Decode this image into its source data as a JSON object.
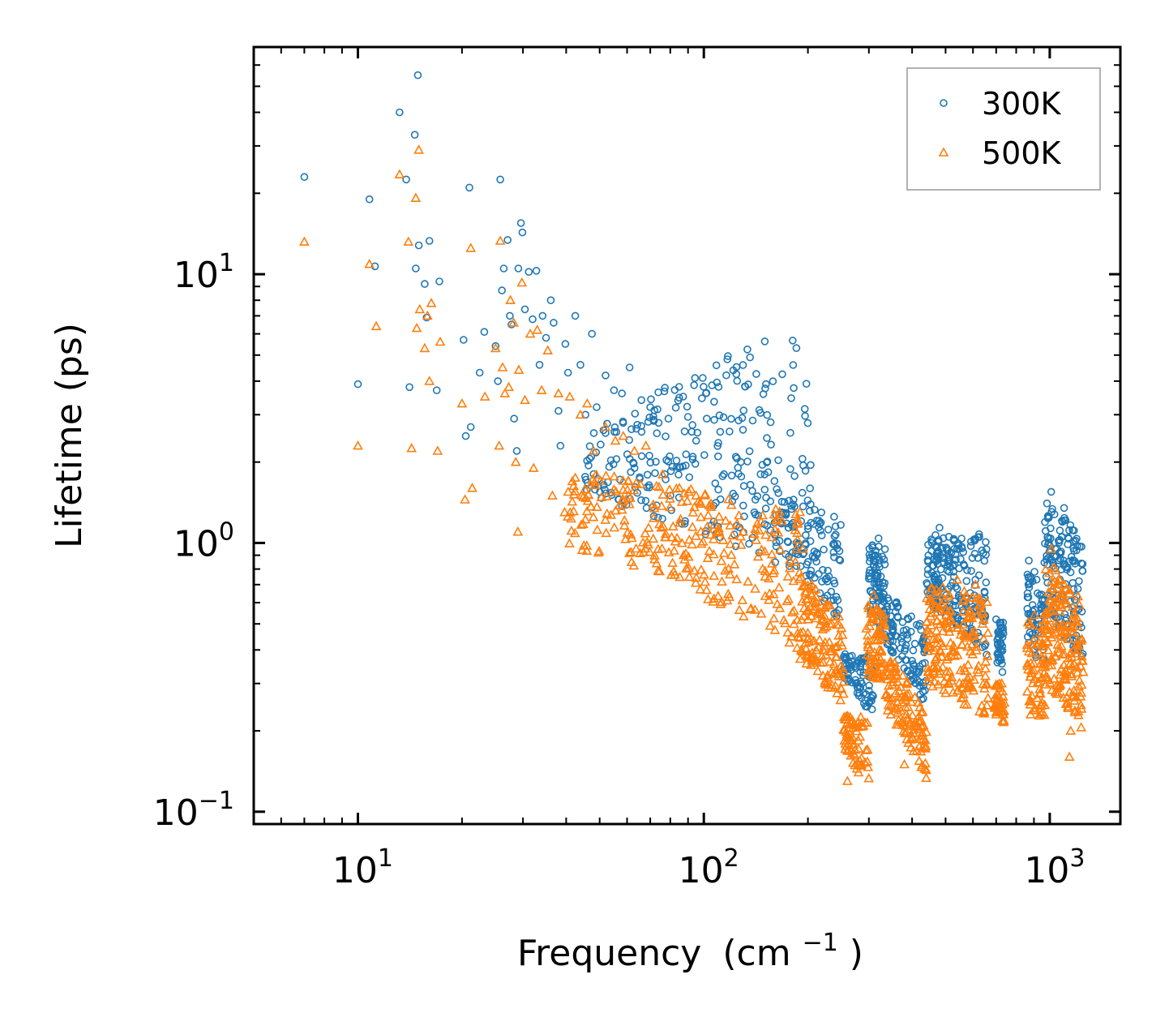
{
  "chart_data": {
    "type": "scatter",
    "title": "",
    "xlabel": "Frequency",
    "xlabel_unit_base": "(cm",
    "xlabel_unit_exp": "−1",
    "xlabel_unit_close": ")",
    "ylabel": "Lifetime (ps)",
    "xscale": "log",
    "yscale": "log",
    "xlim": [
      5,
      1600
    ],
    "ylim": [
      0.09,
      70
    ],
    "xticks": [
      {
        "value": 10,
        "base": "10",
        "exp": "1"
      },
      {
        "value": 100,
        "base": "10",
        "exp": "2"
      },
      {
        "value": 1000,
        "base": "10",
        "exp": "3"
      }
    ],
    "yticks": [
      {
        "value": 0.1,
        "base": "10",
        "exp": "−1"
      },
      {
        "value": 1,
        "base": "10",
        "exp": "0"
      },
      {
        "value": 10,
        "base": "10",
        "exp": "1"
      }
    ],
    "legend_position": "top-right",
    "series": [
      {
        "name": "300K",
        "marker": "circle",
        "color": "#1f77b4",
        "points": [
          [
            7.0,
            23
          ],
          [
            10.0,
            3.9
          ],
          [
            10.8,
            19
          ],
          [
            11.2,
            10.7
          ],
          [
            13.2,
            40
          ],
          [
            13.8,
            22.5
          ],
          [
            14.6,
            33
          ],
          [
            14.9,
            55
          ],
          [
            15.0,
            12.8
          ],
          [
            14.7,
            10.5
          ],
          [
            15.6,
            9.2
          ],
          [
            15.8,
            6.9
          ],
          [
            16.1,
            13.3
          ],
          [
            14.1,
            3.8
          ],
          [
            16.9,
            3.7
          ],
          [
            17.2,
            9.4
          ],
          [
            20.2,
            5.7
          ],
          [
            20.5,
            2.5
          ],
          [
            21.0,
            21
          ],
          [
            21.2,
            2.7
          ],
          [
            22.5,
            4.3
          ],
          [
            23.2,
            6.1
          ],
          [
            25.0,
            5.4
          ],
          [
            25.4,
            4.0
          ],
          [
            25.8,
            22.5
          ],
          [
            26.1,
            8.7
          ],
          [
            26.4,
            10.5
          ],
          [
            27.1,
            13.4
          ],
          [
            27.5,
            7.0
          ],
          [
            27.8,
            6.5
          ],
          [
            28.3,
            2.9
          ],
          [
            28.8,
            2.2
          ],
          [
            29.1,
            10.5
          ],
          [
            29.6,
            15.5
          ],
          [
            29.9,
            14.3
          ],
          [
            30.4,
            7.4
          ],
          [
            31.2,
            10.2
          ],
          [
            32.0,
            6.8
          ],
          [
            32.8,
            10.3
          ],
          [
            33.5,
            4.6
          ],
          [
            34.2,
            7.0
          ],
          [
            35.0,
            5.8
          ],
          [
            36.1,
            8.0
          ],
          [
            36.8,
            6.6
          ],
          [
            38.0,
            3.1
          ],
          [
            38.5,
            2.3
          ],
          [
            39.8,
            5.5
          ],
          [
            40.5,
            4.3
          ],
          [
            42.5,
            7.0
          ],
          [
            44.0,
            4.6
          ],
          [
            45.5,
            3.0
          ],
          [
            47.5,
            6.0
          ],
          [
            49.0,
            3.2
          ],
          [
            52.0,
            4.2
          ],
          [
            55.0,
            3.7
          ],
          [
            58.0,
            3.6
          ],
          [
            61.0,
            4.5
          ],
          [
            66.0,
            3.4
          ],
          [
            70.0,
            3.2
          ],
          [
            74.0,
            2.8
          ],
          [
            79.0,
            2.9
          ],
          [
            88.0,
            2.6
          ],
          [
            95.0,
            2.4
          ],
          [
            102.0,
            2.9
          ],
          [
            110.0,
            2.1
          ],
          [
            128.0,
            2.0
          ],
          [
            140.0,
            1.3
          ],
          [
            150.0,
            1.8
          ],
          [
            160.0,
            1.7
          ],
          [
            185.0,
            1.0
          ],
          [
            200.0,
            0.85
          ],
          [
            230.0,
            0.75
          ],
          [
            280.0,
            0.36
          ],
          [
            320.0,
            1.04
          ],
          [
            360.0,
            0.6
          ],
          [
            410.0,
            0.3
          ],
          [
            430.0,
            0.28
          ],
          [
            480.0,
            1.14
          ],
          [
            540.0,
            0.95
          ],
          [
            620.0,
            1.05
          ],
          [
            700.0,
            0.52
          ],
          [
            870.0,
            0.86
          ],
          [
            1010.0,
            1.55
          ],
          [
            1100.0,
            1.35
          ]
        ],
        "bands": [
          [
            45,
            205,
            2.4,
            6.5,
            1.5,
            0.7,
            260
          ],
          [
            160,
            250,
            1.7,
            1.2,
            0.9,
            0.5,
            120
          ],
          [
            252,
            310,
            0.4,
            0.38,
            0.32,
            0.22,
            80
          ],
          [
            300,
            335,
            1.0,
            1.0,
            0.55,
            0.42,
            90
          ],
          [
            335,
            440,
            0.65,
            0.48,
            0.42,
            0.24,
            110
          ],
          [
            440,
            485,
            1.1,
            1.1,
            0.6,
            0.55,
            70
          ],
          [
            485,
            660,
            1.05,
            1.1,
            0.55,
            0.38,
            150
          ],
          [
            705,
            735,
            0.52,
            0.52,
            0.35,
            0.32,
            40
          ],
          [
            860,
            960,
            0.85,
            0.7,
            0.4,
            0.35,
            60
          ],
          [
            965,
            1250,
            1.5,
            1.0,
            0.55,
            0.35,
            160
          ]
        ]
      },
      {
        "name": "500K",
        "marker": "triangle",
        "color": "#ff7f0e",
        "points": [
          [
            7.0,
            13.2
          ],
          [
            10.0,
            2.3
          ],
          [
            10.8,
            10.9
          ],
          [
            11.3,
            6.4
          ],
          [
            13.2,
            23.5
          ],
          [
            14.0,
            13.2
          ],
          [
            14.3,
            2.25
          ],
          [
            14.7,
            19.2
          ],
          [
            15.0,
            29
          ],
          [
            15.1,
            7.4
          ],
          [
            14.8,
            6.3
          ],
          [
            15.6,
            5.3
          ],
          [
            15.9,
            7.0
          ],
          [
            16.1,
            4.0
          ],
          [
            16.3,
            7.8
          ],
          [
            17.0,
            2.2
          ],
          [
            17.3,
            5.6
          ],
          [
            20.0,
            3.3
          ],
          [
            20.4,
            1.45
          ],
          [
            21.2,
            12.5
          ],
          [
            21.4,
            1.6
          ],
          [
            23.3,
            3.5
          ],
          [
            25.0,
            5.3
          ],
          [
            25.6,
            2.3
          ],
          [
            25.8,
            13.3
          ],
          [
            26.2,
            4.5
          ],
          [
            26.6,
            3.6
          ],
          [
            27.3,
            3.8
          ],
          [
            27.6,
            8.0
          ],
          [
            28.2,
            6.6
          ],
          [
            28.6,
            2.0
          ],
          [
            29.0,
            1.1
          ],
          [
            29.2,
            4.4
          ],
          [
            29.8,
            9.3
          ],
          [
            30.4,
            3.4
          ],
          [
            31.5,
            6.0
          ],
          [
            32.2,
            1.9
          ],
          [
            33.0,
            6.2
          ],
          [
            34.0,
            3.7
          ],
          [
            35.4,
            5.2
          ],
          [
            36.5,
            1.5
          ],
          [
            38.0,
            3.6
          ],
          [
            39.6,
            1.3
          ],
          [
            41.0,
            3.5
          ],
          [
            44.0,
            3.0
          ],
          [
            46.0,
            3.3
          ],
          [
            48.0,
            2.2
          ],
          [
            52.0,
            2.7
          ],
          [
            55.5,
            2.4
          ],
          [
            58.5,
            2.5
          ],
          [
            63.0,
            2.2
          ],
          [
            68.0,
            2.3
          ],
          [
            76.0,
            1.8
          ],
          [
            85.0,
            1.6
          ],
          [
            95.0,
            1.5
          ],
          [
            105.0,
            1.4
          ],
          [
            130.0,
            1.1
          ],
          [
            150.0,
            0.93
          ],
          [
            175.0,
            0.75
          ],
          [
            200.0,
            0.62
          ],
          [
            190.0,
            0.37
          ],
          [
            260.0,
            0.13
          ],
          [
            310.0,
            0.64
          ],
          [
            380.0,
            0.15
          ],
          [
            470.0,
            0.67
          ],
          [
            540.0,
            0.73
          ],
          [
            610.0,
            0.7
          ],
          [
            700.0,
            0.23
          ],
          [
            880.0,
            0.23
          ],
          [
            1010.0,
            0.95
          ],
          [
            1140.0,
            0.16
          ],
          [
            1150.0,
            0.2
          ]
        ],
        "bands": [
          [
            40,
            200,
            1.9,
            1.3,
            0.95,
            0.38,
            300
          ],
          [
            195,
            255,
            0.75,
            0.5,
            0.36,
            0.24,
            120
          ],
          [
            252,
            300,
            0.23,
            0.23,
            0.17,
            0.12,
            70
          ],
          [
            295,
            335,
            0.6,
            0.55,
            0.32,
            0.3,
            80
          ],
          [
            335,
            440,
            0.4,
            0.22,
            0.24,
            0.13,
            120
          ],
          [
            440,
            665,
            0.7,
            0.65,
            0.3,
            0.22,
            200
          ],
          [
            690,
            740,
            0.3,
            0.3,
            0.24,
            0.21,
            40
          ],
          [
            860,
            970,
            0.55,
            0.55,
            0.24,
            0.22,
            70
          ],
          [
            965,
            1250,
            0.9,
            0.6,
            0.3,
            0.2,
            170
          ]
        ]
      }
    ]
  }
}
